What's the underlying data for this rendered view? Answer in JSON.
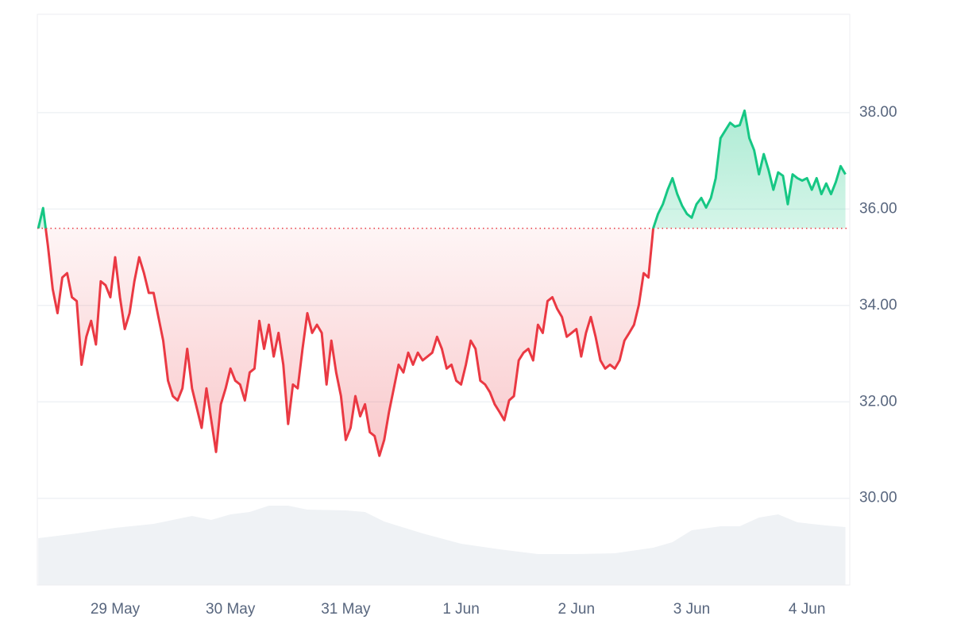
{
  "chart_data": {
    "type": "line",
    "x": [
      8,
      9,
      10,
      11,
      12,
      13,
      14,
      15,
      16,
      17,
      18,
      19,
      20,
      21,
      22,
      23,
      24,
      25,
      26,
      27,
      28,
      29,
      30,
      31,
      32,
      33,
      34,
      35,
      36,
      37,
      38,
      39,
      40,
      41,
      42,
      43,
      44,
      45,
      46,
      47,
      48,
      49,
      50,
      51,
      52,
      53,
      54,
      55,
      56,
      57,
      58,
      59,
      60,
      61,
      62,
      63,
      64,
      65,
      66,
      67,
      68,
      69,
      70,
      71,
      72,
      73,
      74,
      75,
      76,
      77,
      78,
      79,
      80,
      81,
      82,
      83,
      84,
      85,
      86,
      87,
      88,
      89,
      90,
      91,
      92,
      93,
      94,
      95,
      96,
      97,
      98,
      99,
      100,
      101,
      102,
      103,
      104,
      105,
      106,
      107,
      108,
      109,
      110,
      111,
      112,
      113,
      114,
      115,
      116,
      117,
      118,
      119,
      120,
      121,
      122,
      123,
      124,
      125,
      126,
      127,
      128,
      129,
      130,
      131,
      132,
      133,
      134,
      135,
      136,
      137,
      138,
      139,
      140,
      141,
      142,
      143,
      144,
      145,
      146,
      147,
      148,
      149,
      150,
      151,
      152,
      153,
      154,
      155,
      156,
      157,
      158,
      159,
      160,
      161,
      162,
      163,
      164,
      165,
      166,
      167,
      168,
      169,
      170,
      171,
      172,
      173,
      174,
      175,
      176
    ],
    "values": [
      35.6,
      36.02,
      35.24,
      34.34,
      33.84,
      34.58,
      34.67,
      34.17,
      34.09,
      32.77,
      33.35,
      33.68,
      33.19,
      34.5,
      34.42,
      34.17,
      35.0,
      34.17,
      33.51,
      33.84,
      34.5,
      35.0,
      34.67,
      34.26,
      34.26,
      33.76,
      33.27,
      32.44,
      32.12,
      32.03,
      32.28,
      33.1,
      32.28,
      31.87,
      31.46,
      32.28,
      31.62,
      30.96,
      31.95,
      32.28,
      32.69,
      32.44,
      32.36,
      32.03,
      32.61,
      32.69,
      33.68,
      33.1,
      33.6,
      32.94,
      33.43,
      32.77,
      31.54,
      32.36,
      32.28,
      33.1,
      33.84,
      33.43,
      33.6,
      33.43,
      32.36,
      33.27,
      32.61,
      32.12,
      31.21,
      31.46,
      32.12,
      31.7,
      31.95,
      31.37,
      31.29,
      30.88,
      31.21,
      31.79,
      32.28,
      32.77,
      32.61,
      33.02,
      32.77,
      33.02,
      32.86,
      32.94,
      33.02,
      33.35,
      33.1,
      32.69,
      32.77,
      32.44,
      32.36,
      32.77,
      33.27,
      33.1,
      32.44,
      32.36,
      32.2,
      31.95,
      31.79,
      31.62,
      32.03,
      32.12,
      32.86,
      33.02,
      33.1,
      32.86,
      33.6,
      33.43,
      34.09,
      34.17,
      33.93,
      33.76,
      33.35,
      33.43,
      33.51,
      32.94,
      33.43,
      33.76,
      33.35,
      32.86,
      32.69,
      32.77,
      32.69,
      32.86,
      33.27,
      33.43,
      33.6,
      34.01,
      34.67,
      34.58,
      35.6,
      35.9,
      36.1,
      36.4,
      36.64,
      36.31,
      36.07,
      35.9,
      35.82,
      36.1,
      36.23,
      36.03,
      36.23,
      36.64,
      37.47,
      37.63,
      37.79,
      37.71,
      37.74,
      38.04,
      37.47,
      37.22,
      36.72,
      37.14,
      36.81,
      36.4,
      36.76,
      36.69,
      36.1,
      36.72,
      36.64,
      36.59,
      36.64,
      36.4,
      36.64,
      36.31,
      36.53,
      36.31,
      36.56,
      36.89,
      36.72
    ],
    "baseline": 35.6,
    "up_color": "#16c784",
    "down_color": "#ea3943",
    "volume": {
      "axis": "y2",
      "color": "#eff2f5",
      "x": [
        8,
        16,
        24,
        32,
        40,
        44,
        48,
        52,
        56,
        60,
        64,
        72,
        76,
        80,
        88,
        96,
        104,
        112,
        120,
        128,
        136,
        140,
        144,
        150,
        154,
        158,
        162,
        166,
        172,
        176
      ],
      "values": [
        59,
        65,
        72,
        77,
        87,
        82,
        89,
        92,
        100,
        100,
        95,
        94,
        92,
        80,
        65,
        52,
        45,
        39,
        39,
        40,
        47,
        54,
        69,
        74,
        74,
        85,
        89,
        79,
        75,
        73
      ]
    },
    "xlim": [
      7.8,
      176.9
    ],
    "xticks": [
      {
        "value": 24,
        "label": "29 May"
      },
      {
        "value": 48,
        "label": "30 May"
      },
      {
        "value": 72,
        "label": "31 May"
      },
      {
        "value": 96,
        "label": "1 Jun"
      },
      {
        "value": 120,
        "label": "2 Jun"
      },
      {
        "value": 144,
        "label": "3 Jun"
      },
      {
        "value": 168,
        "label": "4 Jun"
      }
    ],
    "ylim": [
      28.2,
      40.04
    ],
    "yticks": [
      {
        "value": 30,
        "label": "30.00"
      },
      {
        "value": 32,
        "label": "32.00"
      },
      {
        "value": 34,
        "label": "34.00"
      },
      {
        "value": 36,
        "label": "36.00"
      },
      {
        "value": 38,
        "label": "38.00"
      }
    ],
    "y2lim": [
      0,
      719
    ],
    "grid": true
  }
}
